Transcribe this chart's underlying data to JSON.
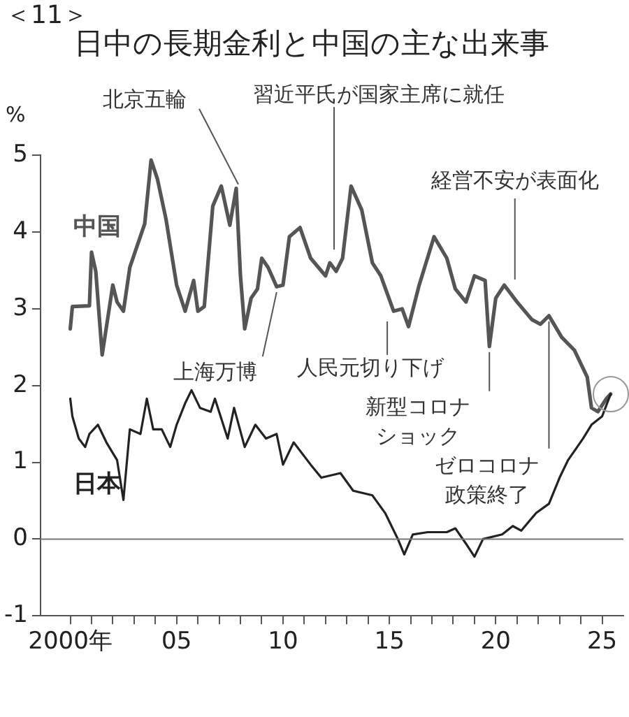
{
  "chart_data": {
    "type": "line",
    "title": "日中の長期金利と中国の主な出来事",
    "ylabel": "%",
    "xlim": [
      1998.6,
      2026
    ],
    "xticks": [
      {
        "value": 2000,
        "label": "2000年"
      },
      {
        "value": 2001,
        "label": null
      },
      {
        "value": 2002,
        "label": null
      },
      {
        "value": 2003,
        "label": null
      },
      {
        "value": 2004,
        "label": null
      },
      {
        "value": 2005,
        "label": "05"
      },
      {
        "value": 2006,
        "label": null
      },
      {
        "value": 2007,
        "label": null
      },
      {
        "value": 2008,
        "label": null
      },
      {
        "value": 2009,
        "label": null
      },
      {
        "value": 2010,
        "label": "10"
      },
      {
        "value": 2011,
        "label": null
      },
      {
        "value": 2012,
        "label": null
      },
      {
        "value": 2013,
        "label": null
      },
      {
        "value": 2014,
        "label": null
      },
      {
        "value": 2015,
        "label": "15"
      },
      {
        "value": 2016,
        "label": null
      },
      {
        "value": 2017,
        "label": null
      },
      {
        "value": 2018,
        "label": null
      },
      {
        "value": 2019,
        "label": null
      },
      {
        "value": 2020,
        "label": "20"
      },
      {
        "value": 2021,
        "label": null
      },
      {
        "value": 2022,
        "label": null
      },
      {
        "value": 2023,
        "label": null
      },
      {
        "value": 2024,
        "label": null
      },
      {
        "value": 2025,
        "label": "25"
      }
    ],
    "ylim": [
      -1,
      5
    ],
    "yticks": [
      -1,
      0,
      1,
      2,
      3,
      4,
      5
    ],
    "grid": false,
    "legend": false,
    "marker": "none",
    "line_style": "solid",
    "series": [
      {
        "name": "中国",
        "color": "#555555",
        "x": [
          2000,
          2000.1,
          2000.9,
          2001,
          2001.2,
          2001.5,
          2002,
          2002.2,
          2002.5,
          2002.8,
          2003.5,
          2003.8,
          2004.1,
          2004.5,
          2005,
          2005.4,
          2005.8,
          2006,
          2006.3,
          2006.7,
          2007.1,
          2007.5,
          2007.8,
          2008,
          2008.2,
          2008.5,
          2008.8,
          2009,
          2009.3,
          2009.7,
          2010,
          2010.3,
          2010.8,
          2011.3,
          2012,
          2012.2,
          2012.5,
          2012.8,
          2013.2,
          2013.7,
          2014.2,
          2014.6,
          2015.2,
          2015.6,
          2015.9,
          2016.4,
          2017.1,
          2017.7,
          2018.1,
          2018.6,
          2019,
          2019.5,
          2019.7,
          2020,
          2020.4,
          2021,
          2021.7,
          2022.1,
          2022.5,
          2023.1,
          2023.7,
          2024.3,
          2024.5,
          2024.8,
          2025.2,
          2025.4
        ],
        "values": [
          2.74,
          3.03,
          3.04,
          3.74,
          3.49,
          2.4,
          3.31,
          3.09,
          2.97,
          3.54,
          4.11,
          4.94,
          4.69,
          4.17,
          3.31,
          2.97,
          3.37,
          2.97,
          3.03,
          4.34,
          4.6,
          4.09,
          4.57,
          3.43,
          2.74,
          3.14,
          3.26,
          3.66,
          3.54,
          3.29,
          3.31,
          3.94,
          4.06,
          3.66,
          3.43,
          3.6,
          3.49,
          3.66,
          4.6,
          4.29,
          3.6,
          3.43,
          2.97,
          3.0,
          2.77,
          3.31,
          3.94,
          3.66,
          3.26,
          3.09,
          3.43,
          3.37,
          2.51,
          3.14,
          3.31,
          3.09,
          2.86,
          2.8,
          2.91,
          2.63,
          2.46,
          2.11,
          1.71,
          1.66,
          1.83,
          1.89
        ]
      },
      {
        "name": "日本",
        "color": "#222222",
        "x": [
          2000,
          2000.1,
          2000.4,
          2000.7,
          2000.9,
          2001.3,
          2001.7,
          2002.2,
          2002.5,
          2002.8,
          2003.3,
          2003.6,
          2003.9,
          2004.3,
          2004.7,
          2005,
          2005.4,
          2005.7,
          2006.1,
          2006.6,
          2006.8,
          2007.4,
          2007.7,
          2008.2,
          2008.7,
          2009.2,
          2009.7,
          2010,
          2010.5,
          2011.3,
          2011.8,
          2012.7,
          2013.3,
          2014.2,
          2014.8,
          2015.4,
          2015.7,
          2016.1,
          2016.8,
          2017.7,
          2018.1,
          2018.6,
          2019,
          2019.4,
          2020.3,
          2020.8,
          2021.2,
          2021.9,
          2022.5,
          2023,
          2023.4,
          2024.1,
          2024.5,
          2025,
          2025.4
        ],
        "values": [
          1.83,
          1.6,
          1.31,
          1.2,
          1.37,
          1.49,
          1.26,
          1.03,
          0.51,
          1.43,
          1.37,
          1.83,
          1.43,
          1.43,
          1.2,
          1.49,
          1.77,
          1.94,
          1.71,
          1.66,
          1.83,
          1.31,
          1.71,
          1.2,
          1.49,
          1.31,
          1.37,
          0.97,
          1.26,
          0.97,
          0.8,
          0.86,
          0.63,
          0.57,
          0.34,
          0,
          -0.2,
          0.06,
          0.09,
          0.09,
          0.14,
          -0.06,
          -0.23,
          0,
          0.06,
          0.17,
          0.11,
          0.34,
          0.46,
          0.8,
          1.03,
          1.31,
          1.49,
          1.6,
          1.89
        ]
      }
    ],
    "ref_lines": [
      {
        "axis": "y",
        "value": 0,
        "color": "#777777"
      }
    ],
    "annotations": [
      "＜11＞",
      {
        "text": "北京五輪",
        "x": 2007.9,
        "y": 4.55
      },
      {
        "text": "習近平氏が国家主席に就任",
        "x": 2012.4,
        "y": 3.7
      },
      {
        "text": "上海万博",
        "x": 2009.7,
        "y": 3.29
      },
      {
        "text": "人民元切り下げ",
        "x": 2014.9,
        "y": 2.91
      },
      {
        "text": "新型コロナショック",
        "x": 2019.7,
        "y": 2.51
      },
      {
        "text": "ゼロコロナ政策終了",
        "x": 2022.5,
        "y": 2.91
      },
      {
        "text": "経営不安が表面化",
        "x": 2020.9,
        "y": 3.31
      }
    ]
  }
}
